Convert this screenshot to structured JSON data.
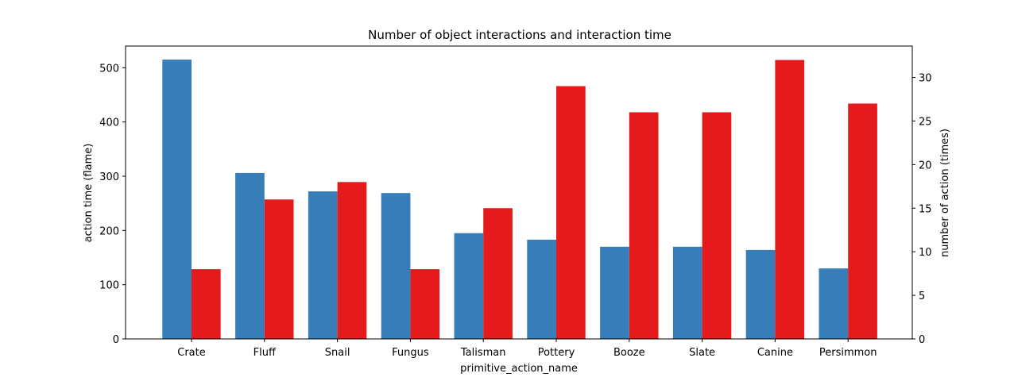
{
  "chart_data": {
    "type": "bar",
    "title": "Number of object interactions and interaction time",
    "xlabel": "primitive_action_name",
    "categories": [
      "Crate",
      "Fluff",
      "Snail",
      "Fungus",
      "Talisman",
      "Pottery",
      "Booze",
      "Slate",
      "Canine",
      "Persimmon"
    ],
    "series": [
      {
        "axis": "left",
        "color": "#377eb8",
        "values": [
          515,
          306,
          272,
          269,
          195,
          183,
          170,
          170,
          164,
          130
        ]
      },
      {
        "axis": "right",
        "color": "#e41a1c",
        "values": [
          8,
          16,
          18,
          8,
          15,
          29,
          26,
          26,
          32,
          27
        ]
      }
    ],
    "y_left": {
      "label": "action time (flame)",
      "ylim": [
        0,
        540
      ],
      "ticks": [
        0,
        100,
        200,
        300,
        400,
        500
      ]
    },
    "y_right": {
      "label": "number of action (times)",
      "ylim": [
        0,
        33.6
      ],
      "ticks": [
        0,
        5,
        10,
        15,
        20,
        25,
        30
      ]
    },
    "grid": false,
    "legend": "none"
  }
}
